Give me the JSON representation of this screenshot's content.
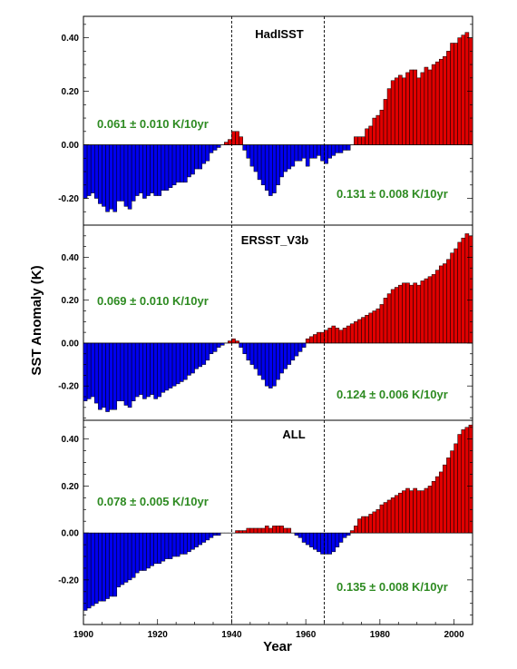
{
  "figure": {
    "ylabel": "SST Anomaly (K)",
    "xlabel": "Year"
  },
  "colors": {
    "positive": "#e00000",
    "negative": "#0000ee",
    "trend_text": "#2e8b22",
    "divider": "#000000"
  },
  "chart_data": [
    {
      "type": "bar",
      "title": "HadISST",
      "x_start": 1900,
      "x": [
        1900,
        1901,
        1902,
        1903,
        1904,
        1905,
        1906,
        1907,
        1908,
        1909,
        1910,
        1911,
        1912,
        1913,
        1914,
        1915,
        1916,
        1917,
        1918,
        1919,
        1920,
        1921,
        1922,
        1923,
        1924,
        1925,
        1926,
        1927,
        1928,
        1929,
        1930,
        1931,
        1932,
        1933,
        1934,
        1935,
        1936,
        1937,
        1938,
        1939,
        1940,
        1941,
        1942,
        1943,
        1944,
        1945,
        1946,
        1947,
        1948,
        1949,
        1950,
        1951,
        1952,
        1953,
        1954,
        1955,
        1956,
        1957,
        1958,
        1959,
        1960,
        1961,
        1962,
        1963,
        1964,
        1965,
        1966,
        1967,
        1968,
        1969,
        1970,
        1971,
        1972,
        1973,
        1974,
        1975,
        1976,
        1977,
        1978,
        1979,
        1980,
        1981,
        1982,
        1983,
        1984,
        1985,
        1986,
        1987,
        1988,
        1989,
        1990,
        1991,
        1992,
        1993,
        1994,
        1995,
        1996,
        1997,
        1998,
        1999,
        2000,
        2001,
        2002,
        2003,
        2004
      ],
      "values": [
        -0.2,
        -0.19,
        -0.18,
        -0.2,
        -0.22,
        -0.23,
        -0.25,
        -0.24,
        -0.25,
        -0.21,
        -0.21,
        -0.23,
        -0.24,
        -0.21,
        -0.19,
        -0.18,
        -0.2,
        -0.19,
        -0.18,
        -0.19,
        -0.19,
        -0.17,
        -0.17,
        -0.16,
        -0.15,
        -0.14,
        -0.14,
        -0.14,
        -0.12,
        -0.11,
        -0.09,
        -0.09,
        -0.07,
        -0.06,
        -0.03,
        -0.02,
        -0.01,
        0.0,
        0.01,
        0.02,
        0.05,
        0.05,
        0.03,
        -0.02,
        -0.05,
        -0.08,
        -0.1,
        -0.13,
        -0.15,
        -0.17,
        -0.19,
        -0.18,
        -0.15,
        -0.12,
        -0.1,
        -0.09,
        -0.08,
        -0.06,
        -0.06,
        -0.05,
        -0.08,
        -0.05,
        -0.05,
        -0.04,
        -0.06,
        -0.07,
        -0.05,
        -0.04,
        -0.03,
        -0.03,
        -0.02,
        -0.02,
        0.0,
        0.03,
        0.03,
        0.03,
        0.06,
        0.07,
        0.1,
        0.11,
        0.13,
        0.17,
        0.21,
        0.24,
        0.25,
        0.26,
        0.25,
        0.27,
        0.28,
        0.28,
        0.25,
        0.27,
        0.29,
        0.28,
        0.3,
        0.31,
        0.32,
        0.33,
        0.35,
        0.38,
        0.38,
        0.4,
        0.41,
        0.42,
        0.4
      ],
      "ylim": [
        -0.3,
        0.48
      ],
      "yticks": [
        -0.2,
        0.0,
        0.2,
        0.4
      ],
      "ytick_labels": [
        "-0.20",
        "0.00",
        "0.20",
        "0.40"
      ],
      "annotations": {
        "early_trend": "0.061 ± 0.010 K/10yr",
        "late_trend": "0.131 ± 0.008 K/10yr"
      }
    },
    {
      "type": "bar",
      "title": "ERSST_V3b",
      "x_start": 1900,
      "x": [
        1900,
        1901,
        1902,
        1903,
        1904,
        1905,
        1906,
        1907,
        1908,
        1909,
        1910,
        1911,
        1912,
        1913,
        1914,
        1915,
        1916,
        1917,
        1918,
        1919,
        1920,
        1921,
        1922,
        1923,
        1924,
        1925,
        1926,
        1927,
        1928,
        1929,
        1930,
        1931,
        1932,
        1933,
        1934,
        1935,
        1936,
        1937,
        1938,
        1939,
        1940,
        1941,
        1942,
        1943,
        1944,
        1945,
        1946,
        1947,
        1948,
        1949,
        1950,
        1951,
        1952,
        1953,
        1954,
        1955,
        1956,
        1957,
        1958,
        1959,
        1960,
        1961,
        1962,
        1963,
        1964,
        1965,
        1966,
        1967,
        1968,
        1969,
        1970,
        1971,
        1972,
        1973,
        1974,
        1975,
        1976,
        1977,
        1978,
        1979,
        1980,
        1981,
        1982,
        1983,
        1984,
        1985,
        1986,
        1987,
        1988,
        1989,
        1990,
        1991,
        1992,
        1993,
        1994,
        1995,
        1996,
        1997,
        1998,
        1999,
        2000,
        2001,
        2002,
        2003,
        2004
      ],
      "values": [
        -0.27,
        -0.26,
        -0.25,
        -0.28,
        -0.31,
        -0.3,
        -0.32,
        -0.31,
        -0.31,
        -0.27,
        -0.27,
        -0.29,
        -0.3,
        -0.27,
        -0.25,
        -0.24,
        -0.26,
        -0.25,
        -0.24,
        -0.26,
        -0.25,
        -0.23,
        -0.22,
        -0.21,
        -0.2,
        -0.19,
        -0.18,
        -0.17,
        -0.15,
        -0.14,
        -0.12,
        -0.11,
        -0.1,
        -0.08,
        -0.05,
        -0.04,
        -0.02,
        -0.01,
        0.0,
        0.01,
        0.02,
        0.01,
        -0.02,
        -0.05,
        -0.08,
        -0.1,
        -0.12,
        -0.15,
        -0.17,
        -0.2,
        -0.21,
        -0.2,
        -0.17,
        -0.14,
        -0.12,
        -0.1,
        -0.08,
        -0.06,
        -0.04,
        -0.02,
        0.02,
        0.03,
        0.04,
        0.05,
        0.05,
        0.06,
        0.07,
        0.08,
        0.07,
        0.06,
        0.07,
        0.08,
        0.09,
        0.1,
        0.11,
        0.12,
        0.13,
        0.14,
        0.15,
        0.16,
        0.18,
        0.21,
        0.23,
        0.25,
        0.26,
        0.27,
        0.28,
        0.28,
        0.27,
        0.28,
        0.27,
        0.29,
        0.3,
        0.31,
        0.32,
        0.34,
        0.36,
        0.37,
        0.39,
        0.42,
        0.44,
        0.47,
        0.49,
        0.51,
        0.5
      ],
      "ylim": [
        -0.36,
        0.55
      ],
      "yticks": [
        -0.2,
        0.0,
        0.2,
        0.4
      ],
      "ytick_labels": [
        "-0.20",
        "0.00",
        "0.20",
        "0.40"
      ],
      "annotations": {
        "early_trend": "0.069 ± 0.010 K/10yr",
        "late_trend": "0.124 ± 0.006 K/10yr"
      }
    },
    {
      "type": "bar",
      "title": "ALL",
      "x_start": 1900,
      "x": [
        1900,
        1901,
        1902,
        1903,
        1904,
        1905,
        1906,
        1907,
        1908,
        1909,
        1910,
        1911,
        1912,
        1913,
        1914,
        1915,
        1916,
        1917,
        1918,
        1919,
        1920,
        1921,
        1922,
        1923,
        1924,
        1925,
        1926,
        1927,
        1928,
        1929,
        1930,
        1931,
        1932,
        1933,
        1934,
        1935,
        1936,
        1937,
        1938,
        1939,
        1940,
        1941,
        1942,
        1943,
        1944,
        1945,
        1946,
        1947,
        1948,
        1949,
        1950,
        1951,
        1952,
        1953,
        1954,
        1955,
        1956,
        1957,
        1958,
        1959,
        1960,
        1961,
        1962,
        1963,
        1964,
        1965,
        1966,
        1967,
        1968,
        1969,
        1970,
        1971,
        1972,
        1973,
        1974,
        1975,
        1976,
        1977,
        1978,
        1979,
        1980,
        1981,
        1982,
        1983,
        1984,
        1985,
        1986,
        1987,
        1988,
        1989,
        1990,
        1991,
        1992,
        1993,
        1994,
        1995,
        1996,
        1997,
        1998,
        1999,
        2000,
        2001,
        2002,
        2003,
        2004
      ],
      "values": [
        -0.33,
        -0.32,
        -0.31,
        -0.3,
        -0.29,
        -0.29,
        -0.28,
        -0.27,
        -0.27,
        -0.23,
        -0.22,
        -0.21,
        -0.2,
        -0.19,
        -0.17,
        -0.16,
        -0.16,
        -0.15,
        -0.14,
        -0.13,
        -0.13,
        -0.12,
        -0.11,
        -0.11,
        -0.1,
        -0.1,
        -0.09,
        -0.09,
        -0.08,
        -0.07,
        -0.06,
        -0.05,
        -0.04,
        -0.03,
        -0.02,
        -0.01,
        -0.01,
        0.0,
        0.0,
        0.0,
        0.0,
        0.01,
        0.01,
        0.01,
        0.02,
        0.02,
        0.02,
        0.02,
        0.02,
        0.03,
        0.02,
        0.03,
        0.03,
        0.03,
        0.02,
        0.02,
        0.0,
        -0.01,
        -0.02,
        -0.04,
        -0.05,
        -0.06,
        -0.07,
        -0.08,
        -0.09,
        -0.09,
        -0.09,
        -0.08,
        -0.06,
        -0.04,
        -0.02,
        -0.01,
        0.01,
        0.03,
        0.06,
        0.07,
        0.07,
        0.08,
        0.09,
        0.1,
        0.12,
        0.13,
        0.14,
        0.15,
        0.16,
        0.17,
        0.18,
        0.19,
        0.18,
        0.19,
        0.18,
        0.18,
        0.19,
        0.2,
        0.22,
        0.24,
        0.26,
        0.29,
        0.32,
        0.35,
        0.38,
        0.42,
        0.44,
        0.45,
        0.46
      ],
      "ylim": [
        -0.39,
        0.48
      ],
      "yticks": [
        -0.2,
        0.0,
        0.2,
        0.4
      ],
      "ytick_labels": [
        "-0.20",
        "0.00",
        "0.20",
        "0.40"
      ],
      "annotations": {
        "early_trend": "0.078 ± 0.005 K/10yr",
        "late_trend": "0.135 ± 0.008 K/10yr"
      }
    }
  ],
  "x_axis": {
    "xlim": [
      1900,
      2005
    ],
    "ticks": [
      1900,
      1920,
      1940,
      1960,
      1980,
      2000
    ],
    "tick_labels": [
      "1900",
      "1920",
      "1940",
      "1960",
      "1980",
      "2000"
    ],
    "reference_lines": [
      1940,
      1965
    ]
  }
}
